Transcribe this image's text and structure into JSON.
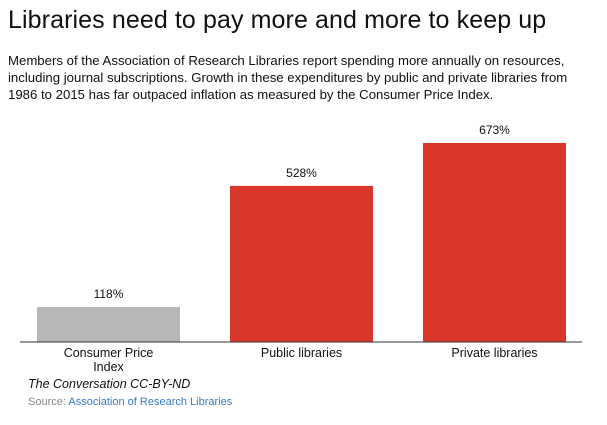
{
  "title": "Libraries need to pay more and more to keep up",
  "subtitle": "Members of the Association of Research Libraries report spending more annually on resources, including journal subscriptions. Growth in these expenditures by public and private libraries from 1986 to 2015 has far outpaced inflation as measured by the Consumer Price Index.",
  "credit": "The Conversation CC-BY-ND",
  "source": {
    "prefix": "Source: ",
    "link_text": "Association of Research Libraries"
  },
  "colors": {
    "cpi": "#b7b7b7",
    "libraries": "#d9372b",
    "axis": "#333333"
  },
  "chart_data": {
    "type": "bar",
    "categories": [
      "Consumer Price Index",
      "Public libraries",
      "Private libraries"
    ],
    "category_lines": [
      [
        "Consumer Price",
        "Index"
      ],
      [
        "Public libraries"
      ],
      [
        "Private libraries"
      ]
    ],
    "values": [
      118,
      528,
      673
    ],
    "value_labels": [
      "118%",
      "528%",
      "673%"
    ],
    "unit": "%",
    "ylim": [
      0,
      700
    ],
    "grid": false,
    "legend": "none"
  }
}
